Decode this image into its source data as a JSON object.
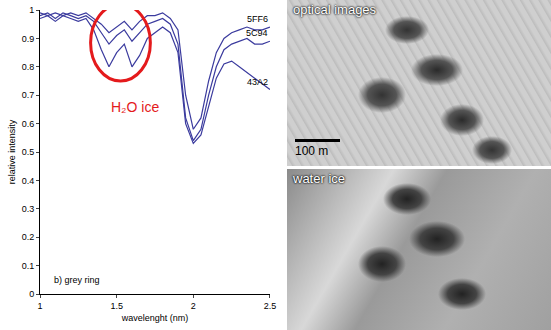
{
  "chart_data": {
    "type": "line",
    "x_label": "wavelenght (nm)",
    "y_label": "relative intensity",
    "x": [
      1.0,
      1.05,
      1.1,
      1.15,
      1.2,
      1.25,
      1.3,
      1.35,
      1.4,
      1.45,
      1.5,
      1.55,
      1.6,
      1.65,
      1.7,
      1.75,
      1.8,
      1.85,
      1.9,
      1.95,
      2.0,
      2.05,
      2.1,
      2.15,
      2.2,
      2.25,
      2.3,
      2.35,
      2.4,
      2.45,
      2.5
    ],
    "series": [
      {
        "name": "5FF6",
        "color": "#3b3b9e",
        "values": [
          0.99,
          0.98,
          0.99,
          0.98,
          0.99,
          0.98,
          0.99,
          0.97,
          0.95,
          0.92,
          0.94,
          0.96,
          0.93,
          0.96,
          0.98,
          0.98,
          0.99,
          0.97,
          0.93,
          0.7,
          0.58,
          0.62,
          0.75,
          0.85,
          0.9,
          0.92,
          0.93,
          0.94,
          0.93,
          0.93,
          0.94
        ]
      },
      {
        "name": "5C94",
        "color": "#3b3b9e",
        "values": [
          0.98,
          0.99,
          0.97,
          0.99,
          0.98,
          0.97,
          0.98,
          0.96,
          0.92,
          0.88,
          0.91,
          0.93,
          0.89,
          0.92,
          0.95,
          0.96,
          0.97,
          0.95,
          0.88,
          0.62,
          0.54,
          0.58,
          0.7,
          0.8,
          0.86,
          0.88,
          0.89,
          0.9,
          0.88,
          0.88,
          0.89
        ]
      },
      {
        "name": "43A2",
        "color": "#3b3b9e",
        "values": [
          0.97,
          0.98,
          0.96,
          0.98,
          0.97,
          0.96,
          0.97,
          0.93,
          0.86,
          0.8,
          0.85,
          0.88,
          0.8,
          0.84,
          0.9,
          0.92,
          0.94,
          0.92,
          0.85,
          0.6,
          0.53,
          0.56,
          0.66,
          0.76,
          0.81,
          0.82,
          0.8,
          0.78,
          0.76,
          0.74,
          0.72
        ]
      }
    ],
    "xlim": [
      1,
      2.5
    ],
    "xticks": [
      1,
      1.5,
      2,
      2.5
    ],
    "ylim": [
      0,
      1
    ],
    "yticks": [
      0,
      0.1,
      0.2,
      0.3,
      0.4,
      0.5,
      0.6,
      0.7,
      0.8,
      0.9,
      1
    ],
    "grid": false,
    "annotations": [
      {
        "text": "H₂O ice",
        "x": 1.45,
        "y": 0.66,
        "color": "#e41a1c",
        "region": {
          "x": [
            1.33,
            1.72
          ],
          "y": [
            0.75,
            1.02
          ]
        }
      },
      {
        "text": "b) grey ring",
        "x": 1.08,
        "y": 0.05
      }
    ]
  },
  "images": [
    {
      "label": "optical images",
      "scale_label": "100 m"
    },
    {
      "label": "water ice"
    }
  ]
}
